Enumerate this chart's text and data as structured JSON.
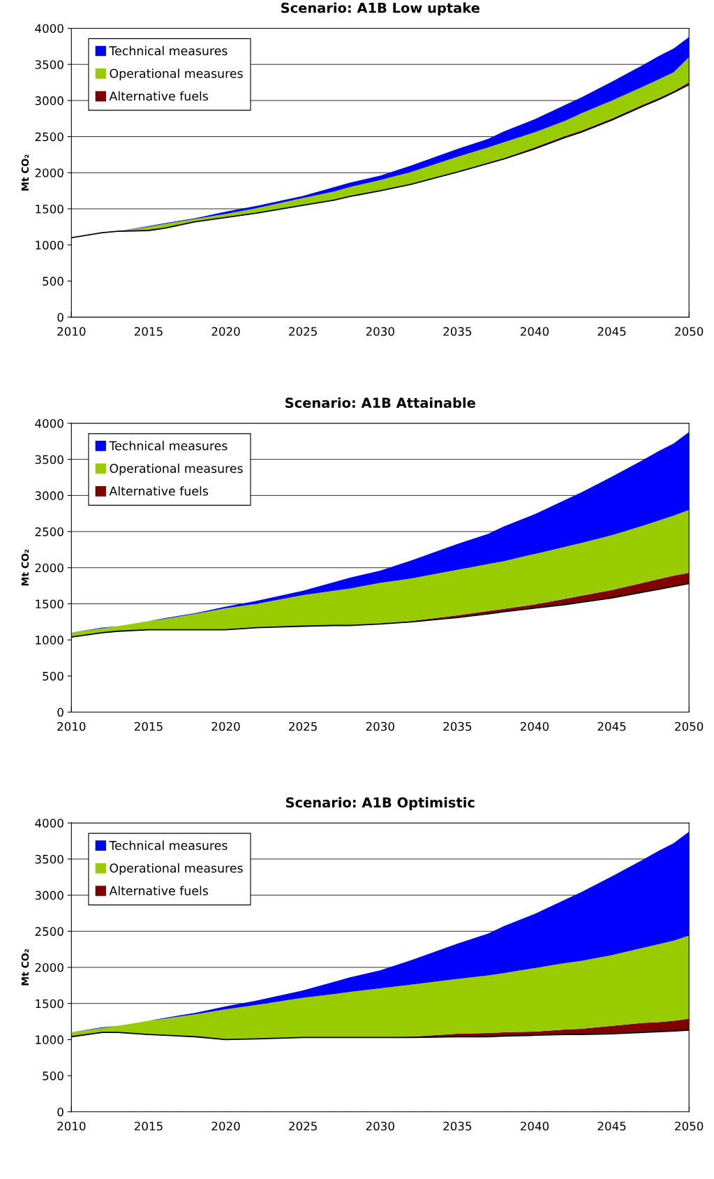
{
  "chart_data": [
    {
      "type": "area",
      "title": "Scenario: A1B Low uptake",
      "ylabel": "Mt CO₂",
      "stacked": true,
      "xlim": [
        2010,
        2050
      ],
      "xticks": [
        2010,
        2015,
        2020,
        2025,
        2030,
        2035,
        2040,
        2045,
        2050
      ],
      "ylim": [
        0,
        4000
      ],
      "yticks": [
        0,
        500,
        1000,
        1500,
        2000,
        2500,
        3000,
        3500,
        4000
      ],
      "grid": "y",
      "legend": "top left",
      "x": [
        2010,
        2012,
        2013,
        2015,
        2016,
        2018,
        2020,
        2022,
        2025,
        2027,
        2028,
        2030,
        2032,
        2035,
        2037,
        2038,
        2040,
        2042,
        2043,
        2045,
        2047,
        2048,
        2049,
        2050
      ],
      "series": [
        {
          "color": "#ffffff",
          "values": [
            1100,
            1170,
            1190,
            1200,
            1230,
            1320,
            1380,
            1440,
            1550,
            1620,
            1670,
            1750,
            1840,
            2010,
            2130,
            2190,
            2330,
            2490,
            2560,
            2730,
            2920,
            3010,
            3110,
            3220
          ]
        },
        {
          "name": "Alternative fuels",
          "color": "#800000",
          "values": [
            0,
            0,
            0,
            0,
            0,
            0,
            0,
            0,
            0,
            0,
            0,
            0,
            0,
            0,
            10,
            10,
            20,
            20,
            20,
            20,
            20,
            20,
            20,
            30
          ]
        },
        {
          "name": "Operational measures",
          "color": "#99cc00",
          "values": [
            0,
            0,
            0,
            50,
            60,
            40,
            50,
            70,
            100,
            120,
            130,
            150,
            170,
            210,
            210,
            220,
            210,
            210,
            240,
            250,
            250,
            260,
            260,
            350
          ]
        },
        {
          "name": "Technical measures",
          "color": "#0000ff",
          "values": [
            0,
            0,
            0,
            10,
            10,
            10,
            30,
            30,
            30,
            60,
            60,
            60,
            90,
            110,
            120,
            150,
            180,
            220,
            220,
            260,
            300,
            320,
            330,
            280
          ]
        }
      ]
    },
    {
      "type": "area",
      "title": "Scenario: A1B Attainable",
      "ylabel": "Mt CO₂",
      "stacked": true,
      "xlim": [
        2010,
        2050
      ],
      "xticks": [
        2010,
        2015,
        2020,
        2025,
        2030,
        2035,
        2040,
        2045,
        2050
      ],
      "ylim": [
        0,
        4000
      ],
      "yticks": [
        0,
        500,
        1000,
        1500,
        2000,
        2500,
        3000,
        3500,
        4000
      ],
      "grid": "y",
      "legend": "top left",
      "x": [
        2010,
        2012,
        2013,
        2015,
        2016,
        2018,
        2020,
        2022,
        2025,
        2027,
        2028,
        2030,
        2032,
        2035,
        2037,
        2038,
        2040,
        2042,
        2043,
        2045,
        2047,
        2048,
        2049,
        2050
      ],
      "series": [
        {
          "color": "#ffffff",
          "values": [
            1040,
            1100,
            1120,
            1140,
            1140,
            1140,
            1140,
            1170,
            1190,
            1200,
            1200,
            1220,
            1250,
            1310,
            1360,
            1390,
            1440,
            1490,
            1520,
            1580,
            1660,
            1700,
            1740,
            1780
          ]
        },
        {
          "name": "Alternative fuels",
          "color": "#800000",
          "values": [
            0,
            0,
            0,
            0,
            0,
            0,
            0,
            0,
            0,
            0,
            0,
            0,
            10,
            30,
            40,
            40,
            50,
            80,
            90,
            110,
            130,
            140,
            150,
            150
          ]
        },
        {
          "name": "Operational measures",
          "color": "#99cc00",
          "values": [
            60,
            60,
            70,
            120,
            150,
            220,
            300,
            330,
            430,
            480,
            510,
            570,
            590,
            630,
            650,
            660,
            700,
            720,
            730,
            760,
            790,
            810,
            830,
            870
          ]
        },
        {
          "name": "Technical measures",
          "color": "#0000ff",
          "values": [
            0,
            10,
            0,
            0,
            10,
            10,
            20,
            40,
            60,
            120,
            150,
            170,
            250,
            360,
            420,
            480,
            550,
            650,
            700,
            810,
            910,
            960,
            1000,
            1080
          ]
        }
      ]
    },
    {
      "type": "area",
      "title": "Scenario: A1B Optimistic",
      "ylabel": "Mt CO₂",
      "stacked": true,
      "xlim": [
        2010,
        2050
      ],
      "xticks": [
        2010,
        2015,
        2020,
        2025,
        2030,
        2035,
        2040,
        2045,
        2050
      ],
      "ylim": [
        0,
        4000
      ],
      "yticks": [
        0,
        500,
        1000,
        1500,
        2000,
        2500,
        3000,
        3500,
        4000
      ],
      "grid": "y",
      "legend": "top left",
      "x": [
        2010,
        2012,
        2013,
        2015,
        2016,
        2018,
        2020,
        2022,
        2025,
        2027,
        2028,
        2030,
        2032,
        2035,
        2037,
        2038,
        2040,
        2042,
        2043,
        2045,
        2047,
        2048,
        2049,
        2050
      ],
      "series": [
        {
          "color": "#ffffff",
          "values": [
            1040,
            1100,
            1100,
            1070,
            1060,
            1040,
            1000,
            1010,
            1030,
            1030,
            1030,
            1030,
            1030,
            1040,
            1040,
            1050,
            1060,
            1070,
            1070,
            1080,
            1100,
            1110,
            1120,
            1130
          ]
        },
        {
          "name": "Alternative fuels",
          "color": "#800000",
          "values": [
            0,
            0,
            0,
            0,
            0,
            0,
            0,
            0,
            0,
            0,
            0,
            0,
            10,
            40,
            50,
            50,
            50,
            70,
            80,
            110,
            130,
            130,
            140,
            160
          ]
        },
        {
          "name": "Operational measures",
          "color": "#99cc00",
          "values": [
            60,
            60,
            90,
            190,
            230,
            310,
            420,
            470,
            550,
            600,
            630,
            680,
            720,
            760,
            800,
            820,
            880,
            920,
            940,
            980,
            1040,
            1080,
            1110,
            1150
          ]
        },
        {
          "name": "Technical measures",
          "color": "#0000ff",
          "values": [
            0,
            10,
            0,
            0,
            10,
            20,
            40,
            60,
            100,
            170,
            200,
            250,
            340,
            490,
            580,
            650,
            750,
            880,
            950,
            1090,
            1220,
            1290,
            1350,
            1440
          ]
        }
      ]
    }
  ]
}
